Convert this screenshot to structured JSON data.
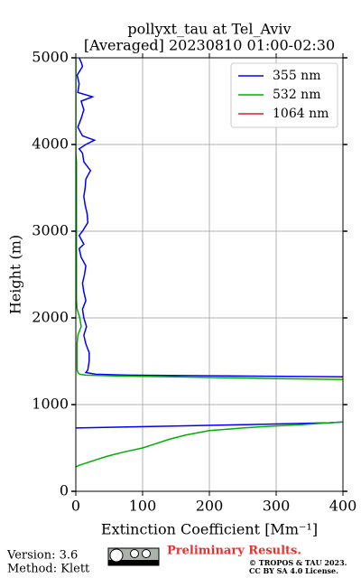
{
  "chart_data": {
    "type": "line",
    "title": "pollyxt_tau at Tel_Aviv",
    "subtitle": "[Averaged] 20230810 01:00-02:30",
    "x_label": "Extinction Coefficient [Mm⁻¹]",
    "y_label": "Height (m)",
    "y": [
      0,
      100,
      200,
      280,
      300,
      400,
      450,
      500,
      550,
      600,
      650,
      700,
      730,
      750,
      770,
      790,
      800,
      1000,
      1290,
      1300,
      1320,
      1330,
      1340,
      1350,
      1370,
      1400,
      1500,
      1600,
      1700,
      1800,
      1900,
      2000,
      2100,
      2200,
      2300,
      2400,
      2500,
      2600,
      2700,
      2800,
      2850,
      2950,
      3000,
      3100,
      3200,
      3300,
      3400,
      3500,
      3600,
      3700,
      3800,
      3900,
      3950,
      4000,
      4050,
      4100,
      4200,
      4300,
      4400,
      4500,
      4550,
      4600,
      4700,
      4800,
      4900,
      4950,
      5000
    ],
    "series": [
      {
        "name": "355 nm",
        "color": "#0000ff",
        "values": [
          null,
          null,
          null,
          null,
          null,
          null,
          null,
          null,
          null,
          null,
          null,
          null,
          0,
          130,
          260,
          380,
          400,
          null,
          null,
          null,
          400,
          250,
          80,
          30,
          15,
          18,
          20,
          20,
          15,
          12,
          16,
          12,
          10,
          15,
          12,
          10,
          13,
          15,
          8,
          5,
          12,
          5,
          10,
          18,
          17,
          14,
          12,
          14,
          15,
          22,
          12,
          10,
          5,
          15,
          28,
          10,
          3,
          8,
          12,
          8,
          25,
          3,
          5,
          2,
          10,
          8,
          5
        ]
      },
      {
        "name": "532 nm",
        "color": "#00b000",
        "values": [
          null,
          null,
          null,
          0,
          5,
          45,
          70,
          100,
          120,
          140,
          165,
          200,
          250,
          290,
          340,
          380,
          400,
          null,
          400,
          300,
          150,
          60,
          15,
          6,
          3,
          2,
          2,
          2,
          2,
          3,
          8,
          6,
          2,
          1,
          1,
          1,
          1,
          1,
          1,
          1,
          1,
          1,
          1,
          1,
          1,
          1,
          1,
          1,
          1,
          1,
          1,
          0,
          0,
          0,
          0,
          0,
          0,
          0,
          0,
          0,
          0,
          0,
          0,
          0,
          0,
          0,
          0
        ]
      },
      {
        "name": "1064 nm",
        "color": "#e02020",
        "values": [
          null,
          null,
          null,
          null,
          null,
          null,
          null,
          null,
          null,
          null,
          null,
          null,
          null,
          null,
          null,
          null,
          null,
          null,
          null,
          null,
          null,
          null,
          null,
          null,
          null,
          null,
          null,
          null,
          null,
          null,
          null,
          null,
          null,
          null,
          null,
          null,
          null,
          null,
          null,
          null,
          null,
          null,
          null,
          null,
          null,
          null,
          null,
          null,
          null,
          null,
          null,
          null,
          null,
          null,
          null,
          null,
          null,
          null,
          null,
          null,
          null,
          null,
          null,
          null,
          null,
          null,
          null
        ]
      }
    ],
    "xlim": [
      0,
      400
    ],
    "xticks": [
      0,
      100,
      200,
      300,
      400
    ],
    "ylim": [
      0,
      5000
    ],
    "yticks": [
      0,
      1000,
      2000,
      3000,
      4000,
      5000
    ],
    "grid": true,
    "legend": "upper right"
  },
  "footer": {
    "version": "Version: 3.6",
    "method": "Method: Klett",
    "status": "Preliminary Results.",
    "copyright": "© TROPOS & TAU 2023.",
    "license": "CC BY SA 4.0 License."
  }
}
